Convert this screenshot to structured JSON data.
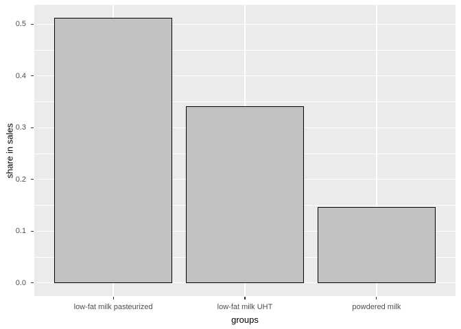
{
  "chart_data": {
    "type": "bar",
    "title": "",
    "xlabel": "groups",
    "ylabel": "share in sales",
    "categories": [
      "low-fat milk pasteurized",
      "low-fat milk UHT",
      "powdered milk"
    ],
    "values": [
      0.512,
      0.341,
      0.147
    ],
    "y_ticks": [
      0.0,
      0.1,
      0.2,
      0.3,
      0.4,
      0.5
    ],
    "y_tick_labels": [
      "0.0",
      "0.1",
      "0.2",
      "0.3",
      "0.4",
      "0.5"
    ],
    "y_minor_ticks": [
      0.05,
      0.15,
      0.25,
      0.35,
      0.45
    ],
    "ylim": [
      -0.0256,
      0.5376
    ],
    "grid": "major-and-minor",
    "legend": "none",
    "bar_width_fraction": 0.9,
    "colors": {
      "figure_background": "#FFFFFF",
      "panel_background": "#EBEBEB",
      "grid_major": "#FFFFFF",
      "grid_minor": "#FFFFFF",
      "bar_fill": "#C1C1C1",
      "bar_border": "#000000",
      "axis_text": "#4D4D4D",
      "axis_title": "#000000",
      "tick_mark": "#333333"
    }
  }
}
